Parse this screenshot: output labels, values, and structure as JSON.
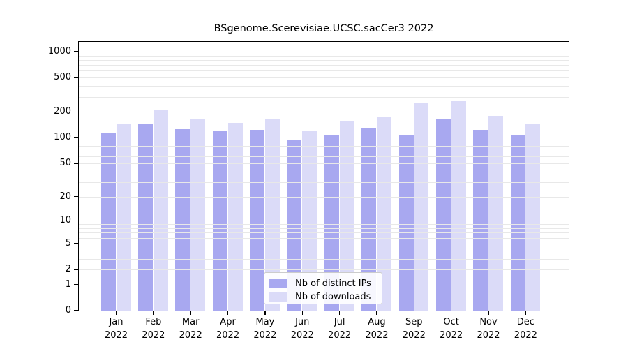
{
  "chart_data": {
    "type": "bar",
    "title": "BSgenome.Scerevisiae.UCSC.sacCer3 2022",
    "year": "2022",
    "categories": [
      "Jan",
      "Feb",
      "Mar",
      "Apr",
      "May",
      "Jun",
      "Jul",
      "Aug",
      "Sep",
      "Oct",
      "Nov",
      "Dec"
    ],
    "series": [
      {
        "name": "Nb of distinct IPs",
        "color": "#a8a8f0",
        "values": [
          114,
          147,
          126,
          121,
          124,
          95,
          108,
          131,
          106,
          167,
          124,
          108
        ]
      },
      {
        "name": "Nb of downloads",
        "color": "#dbdbf8",
        "values": [
          146,
          213,
          163,
          149,
          164,
          118,
          157,
          175,
          250,
          267,
          179,
          147
        ]
      }
    ],
    "xlabel": "",
    "ylabel": "",
    "yscale": "log1p",
    "ylim": [
      0,
      1300
    ],
    "y_ticks": [
      0,
      1,
      2,
      5,
      10,
      20,
      50,
      100,
      200,
      500,
      1000
    ],
    "gridlines": {
      "major": [
        1,
        10,
        100
      ],
      "minor": [
        2,
        3,
        4,
        5,
        6,
        7,
        8,
        9,
        20,
        30,
        40,
        50,
        60,
        70,
        80,
        90,
        200,
        300,
        400,
        500,
        600,
        700,
        800,
        900,
        1000
      ],
      "on_top_of_bars": true
    },
    "legend_position": "lower center",
    "colors": {
      "major_grid": "#b0b0b0",
      "minor_grid": "#e8e8e8",
      "axis": "#000000",
      "background": "#ffffff"
    }
  }
}
